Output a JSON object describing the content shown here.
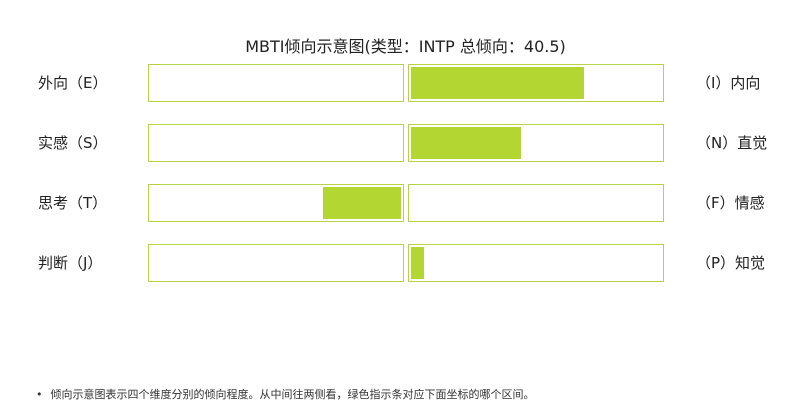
{
  "chart_data": {
    "type": "bar",
    "title": "MBTI倾向示意图(类型：INTP 总倾向：40.5)",
    "color": "#b3d633",
    "dimensions": [
      {
        "left": "外向（E）",
        "right": "（I）内向",
        "side": "right",
        "value": 0.69
      },
      {
        "left": "实感（S）",
        "right": "（N）直觉",
        "side": "right",
        "value": 0.44
      },
      {
        "left": "思考（T）",
        "right": "（F）情感",
        "side": "left",
        "value": 0.31
      },
      {
        "left": "判断（J）",
        "right": "（P）知觉",
        "side": "right",
        "value": 0.05
      }
    ]
  },
  "note": "倾向示意图表示四个维度分别的倾向程度。从中间往两侧看，绿色指示条对应下面坐标的哪个区间。"
}
